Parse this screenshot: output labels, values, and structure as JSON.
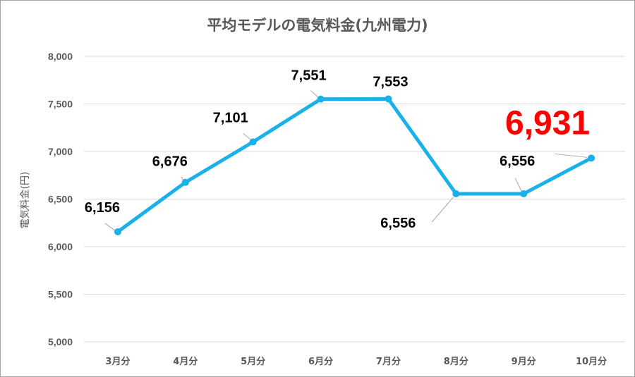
{
  "chart_data": {
    "type": "line",
    "title": "平均モデルの電気料金(九州電力)",
    "ylabel": "電気料金(円)",
    "xlabel": "",
    "categories": [
      "3月分",
      "4月分",
      "5月分",
      "6月分",
      "7月分",
      "8月分",
      "9月分",
      "10月分"
    ],
    "series": [
      {
        "values": [
          6156,
          6676,
          7101,
          7551,
          7553,
          6556,
          6556,
          6931
        ]
      }
    ],
    "data_labels": [
      "6,156",
      "6,676",
      "7,101",
      "7,551",
      "7,553",
      "6,556",
      "6,556",
      "6,931"
    ],
    "ylim": [
      5000,
      8000
    ],
    "yticks": [
      5000,
      5500,
      6000,
      6500,
      7000,
      7500,
      8000
    ],
    "ytick_labels": [
      "5,000",
      "5,500",
      "6,000",
      "6,500",
      "7,000",
      "7,500",
      "8,000"
    ],
    "grid": true,
    "legend": "none",
    "highlight_index": 7,
    "colors": {
      "line": "#1ab0e8",
      "highlight_label": "#ff0000",
      "grid": "#d9d9d9",
      "text": "#595959"
    }
  }
}
